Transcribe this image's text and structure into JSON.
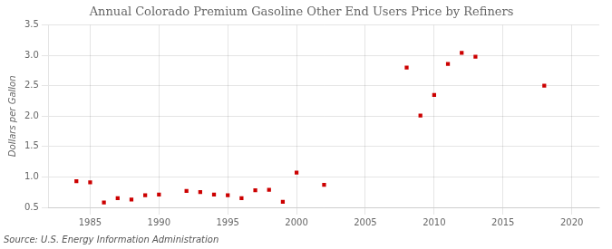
{
  "chart_data": {
    "type": "scatter",
    "title": "Annual Colorado Premium Gasoline Other End Users Price by Refiners",
    "y_label": "Dollars per Gallon",
    "annotations": [
      "Source: U.S. Energy Information Administration"
    ],
    "x": [
      1984,
      1985,
      1986,
      1987,
      1988,
      1989,
      1990,
      1992,
      1993,
      1994,
      1995,
      1996,
      1997,
      1998,
      1999,
      2000,
      2002,
      2008,
      2009,
      2010,
      2011,
      2012,
      2013,
      2018
    ],
    "values": [
      0.93,
      0.91,
      0.58,
      0.65,
      0.63,
      0.7,
      0.71,
      0.77,
      0.75,
      0.71,
      0.7,
      0.65,
      0.78,
      0.79,
      0.59,
      1.07,
      0.87,
      2.8,
      2.01,
      2.35,
      2.86,
      3.04,
      2.98,
      2.5
    ],
    "color": "#cc0000",
    "marker": "square",
    "xlim": [
      1982,
      2022
    ],
    "xticks": [
      1985,
      1990,
      1995,
      2000,
      2005,
      2010,
      2015,
      2020
    ],
    "ylim": [
      0.5,
      3.5
    ],
    "yticks": [
      0.5,
      {
        "value": 1.0,
        "label": "1.0"
      },
      1.5,
      {
        "value": 2.0,
        "label": "2.0"
      },
      2.5,
      {
        "value": 3.0,
        "label": "3.0"
      },
      3.5
    ],
    "grid": true
  }
}
